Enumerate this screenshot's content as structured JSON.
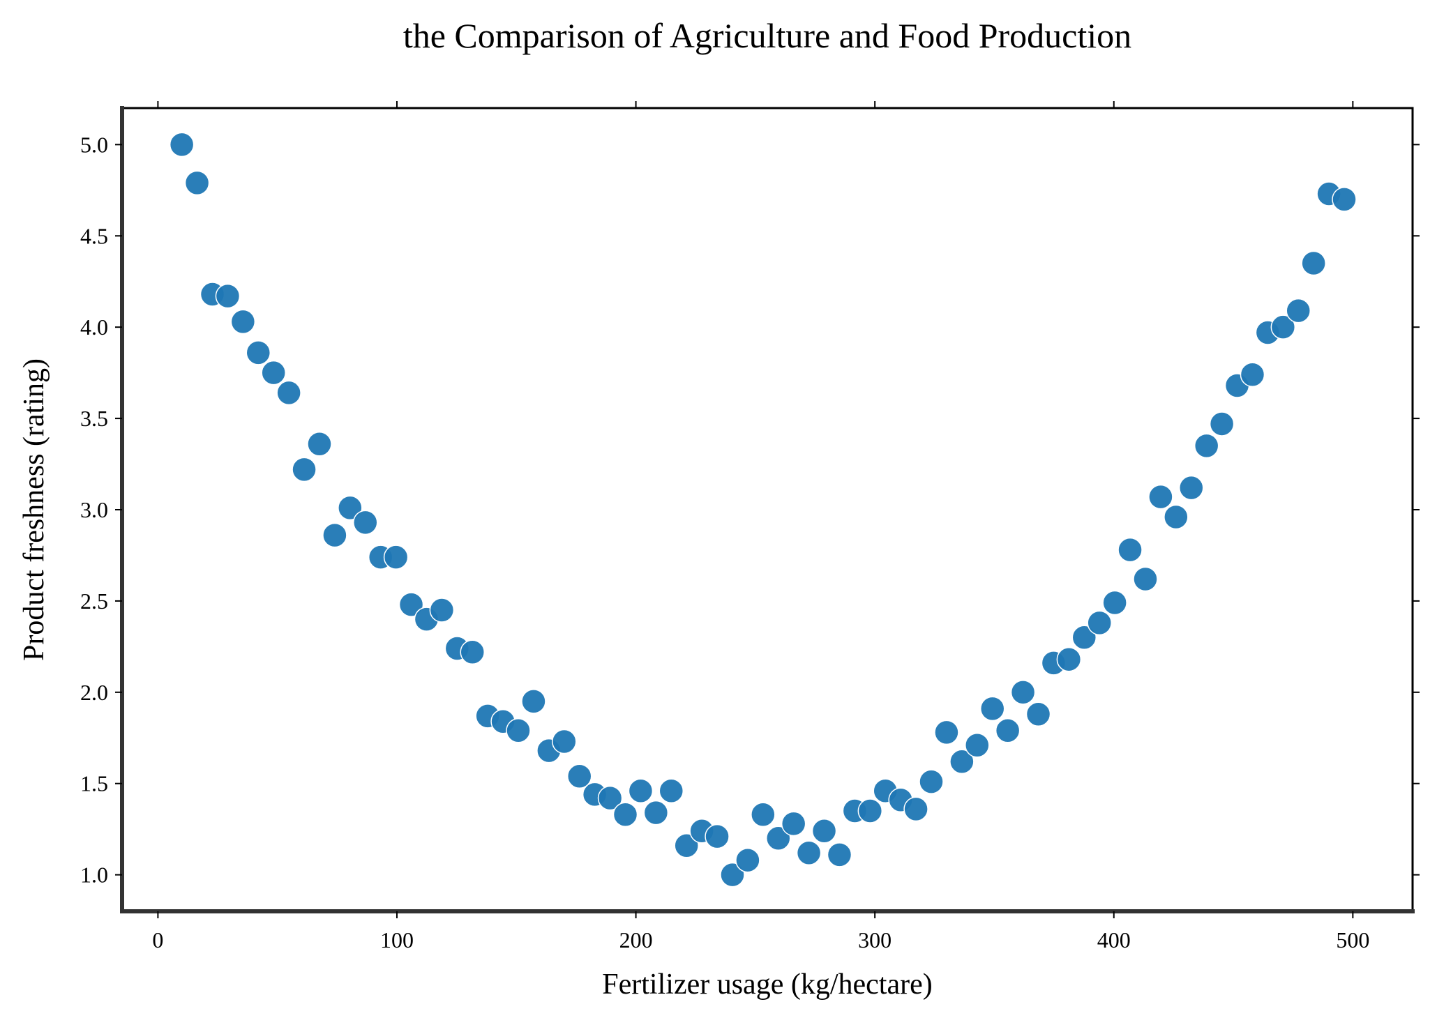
{
  "chart_data": {
    "type": "scatter",
    "title": "the Comparison of Agriculture and Food Production",
    "xlabel": "Fertilizer usage (kg/hectare)",
    "ylabel": "Product freshness (rating)",
    "xlim": [
      -15,
      525
    ],
    "ylim": [
      0.8,
      5.2
    ],
    "xticks": [
      0,
      100,
      200,
      300,
      400,
      500
    ],
    "yticks": [
      1.0,
      1.5,
      2.0,
      2.5,
      3.0,
      3.5,
      4.0,
      4.5,
      5.0
    ],
    "xtick_labels": [
      "0",
      "100",
      "200",
      "300",
      "400",
      "500"
    ],
    "ytick_labels": [
      "1.0",
      "1.5",
      "2.0",
      "2.5",
      "3.0",
      "3.5",
      "4.0",
      "4.5",
      "5.0"
    ],
    "grid": false,
    "marker_color": "#1f77b4",
    "x": [
      10,
      16.4,
      22.8,
      29.2,
      35.6,
      42,
      48.4,
      54.8,
      61.2,
      67.6,
      74,
      80.4,
      86.8,
      93.2,
      99.6,
      106,
      112.4,
      118.8,
      125.2,
      131.6,
      138,
      144.4,
      150.8,
      157.2,
      163.6,
      170,
      176.4,
      182.8,
      189.2,
      195.6,
      202,
      208.4,
      214.8,
      221.2,
      227.6,
      234,
      240.4,
      246.8,
      253.2,
      259.6,
      266,
      272.4,
      278.8,
      285.2,
      291.6,
      298,
      304.4,
      310.8,
      317.2,
      323.6,
      330,
      336.4,
      342.8,
      349.2,
      355.6,
      362,
      368.4,
      374.8,
      381.2,
      387.6,
      394,
      400.4,
      406.8,
      413.2,
      419.6,
      426,
      432.4,
      438.8,
      445.2,
      451.6,
      458,
      464.4,
      470.8,
      477.2,
      483.6,
      490,
      496.4
    ],
    "y": [
      5.0,
      4.79,
      4.18,
      4.17,
      4.03,
      3.86,
      3.75,
      3.64,
      3.22,
      3.36,
      2.86,
      3.01,
      2.93,
      2.74,
      2.74,
      2.48,
      2.4,
      2.45,
      2.24,
      2.22,
      1.87,
      1.84,
      1.79,
      1.95,
      1.68,
      1.73,
      1.54,
      1.44,
      1.42,
      1.33,
      1.46,
      1.34,
      1.46,
      1.16,
      1.24,
      1.21,
      1.0,
      1.08,
      1.33,
      1.2,
      1.28,
      1.12,
      1.24,
      1.11,
      1.35,
      1.35,
      1.46,
      1.41,
      1.36,
      1.51,
      1.78,
      1.62,
      1.71,
      1.91,
      1.79,
      2.0,
      1.88,
      2.16,
      2.18,
      2.3,
      2.38,
      2.49,
      2.78,
      2.62,
      3.07,
      2.96,
      3.12,
      3.35,
      3.47,
      3.68,
      3.74,
      3.97,
      4.0,
      4.09,
      4.35,
      4.73,
      4.7
    ]
  }
}
